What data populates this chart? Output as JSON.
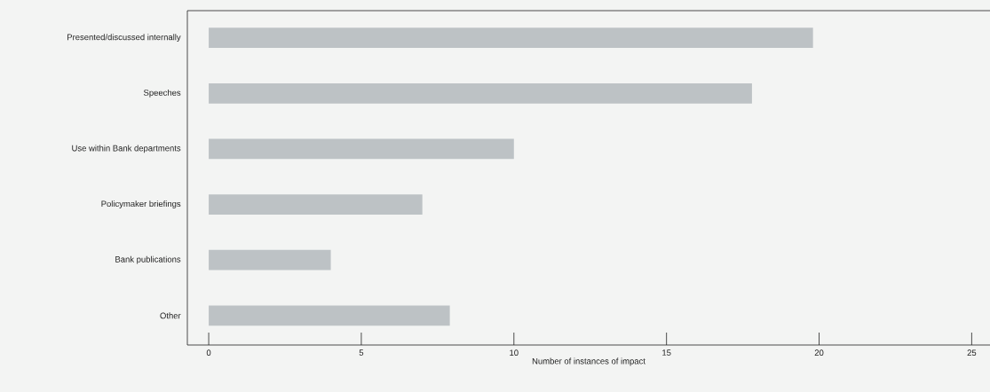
{
  "chart_data": {
    "type": "bar",
    "orientation": "horizontal",
    "categories": [
      "Presented/discussed internally",
      "Speeches",
      "Use within Bank departments",
      "Policymaker briefings",
      "Bank publications",
      "Other"
    ],
    "values": [
      19.8,
      17.8,
      10,
      7,
      4,
      7.9
    ],
    "color": "#bdc2c5",
    "xlabel": "Number of instances of impact",
    "xlim": [
      -0.7,
      25.6
    ],
    "xticks": [
      0,
      5,
      10,
      15,
      20,
      25
    ]
  }
}
